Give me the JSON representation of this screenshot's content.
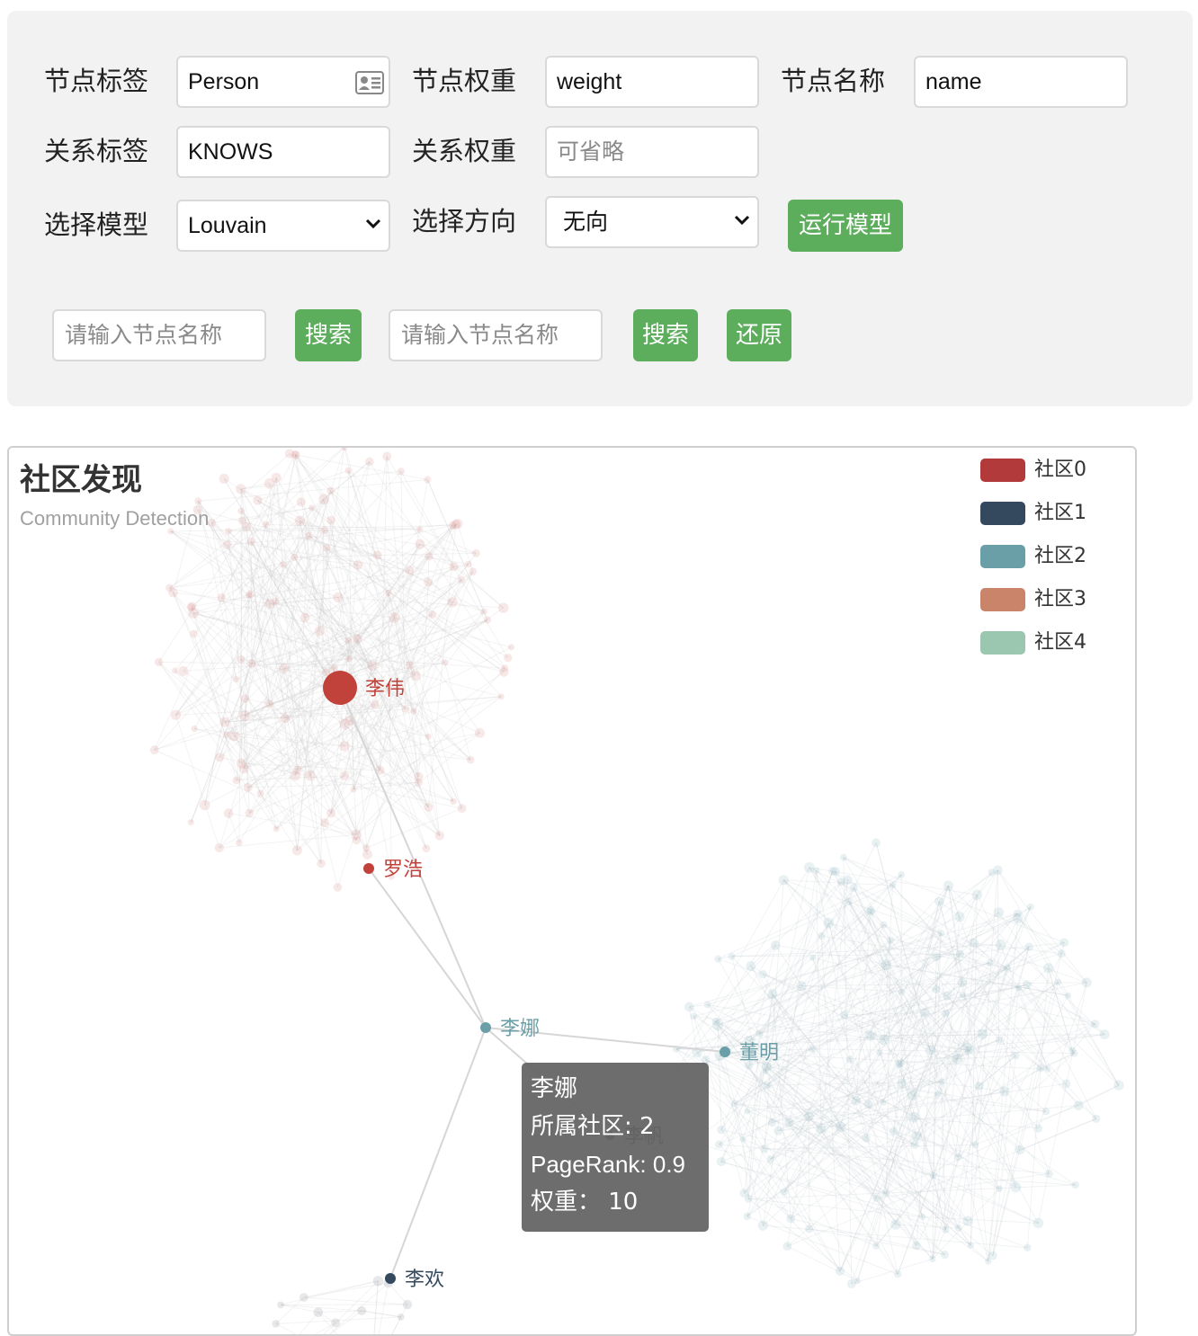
{
  "form": {
    "node_label": {
      "label": "节点标签",
      "value": "Person"
    },
    "node_weight": {
      "label": "节点权重",
      "value": "weight"
    },
    "node_name": {
      "label": "节点名称",
      "value": "name"
    },
    "rel_label": {
      "label": "关系标签",
      "value": "KNOWS"
    },
    "rel_weight": {
      "label": "关系权重",
      "placeholder": "可省略"
    },
    "model": {
      "label": "选择模型",
      "value": "Louvain"
    },
    "direction": {
      "label": "选择方向",
      "value": "无向"
    },
    "run_button": "运行模型"
  },
  "search": {
    "input1_placeholder": "请输入节点名称",
    "button1": "搜索",
    "input2_placeholder": "请输入节点名称",
    "button2": "搜索",
    "reset_button": "还原"
  },
  "chart": {
    "title": "社区发现",
    "subtitle": "Community Detection"
  },
  "legend": [
    {
      "label": "社区0",
      "color": "#b33a3a"
    },
    {
      "label": "社区1",
      "color": "#34495e"
    },
    {
      "label": "社区2",
      "color": "#6a9fa8"
    },
    {
      "label": "社区3",
      "color": "#c98469"
    },
    {
      "label": "社区4",
      "color": "#9bc6af"
    }
  ],
  "nodes": [
    {
      "name": "李伟",
      "community": 0
    },
    {
      "name": "罗浩",
      "community": 0
    },
    {
      "name": "李娜",
      "community": 2
    },
    {
      "name": "董明",
      "community": 2
    },
    {
      "name": "李欢",
      "community": 1
    },
    {
      "name": "李帆",
      "community": 1
    }
  ],
  "tooltip": {
    "name": "李娜",
    "community_line": "所属社区: 2",
    "pagerank_line": "PageRank: 0.9",
    "weight_line": "权重： 10"
  }
}
